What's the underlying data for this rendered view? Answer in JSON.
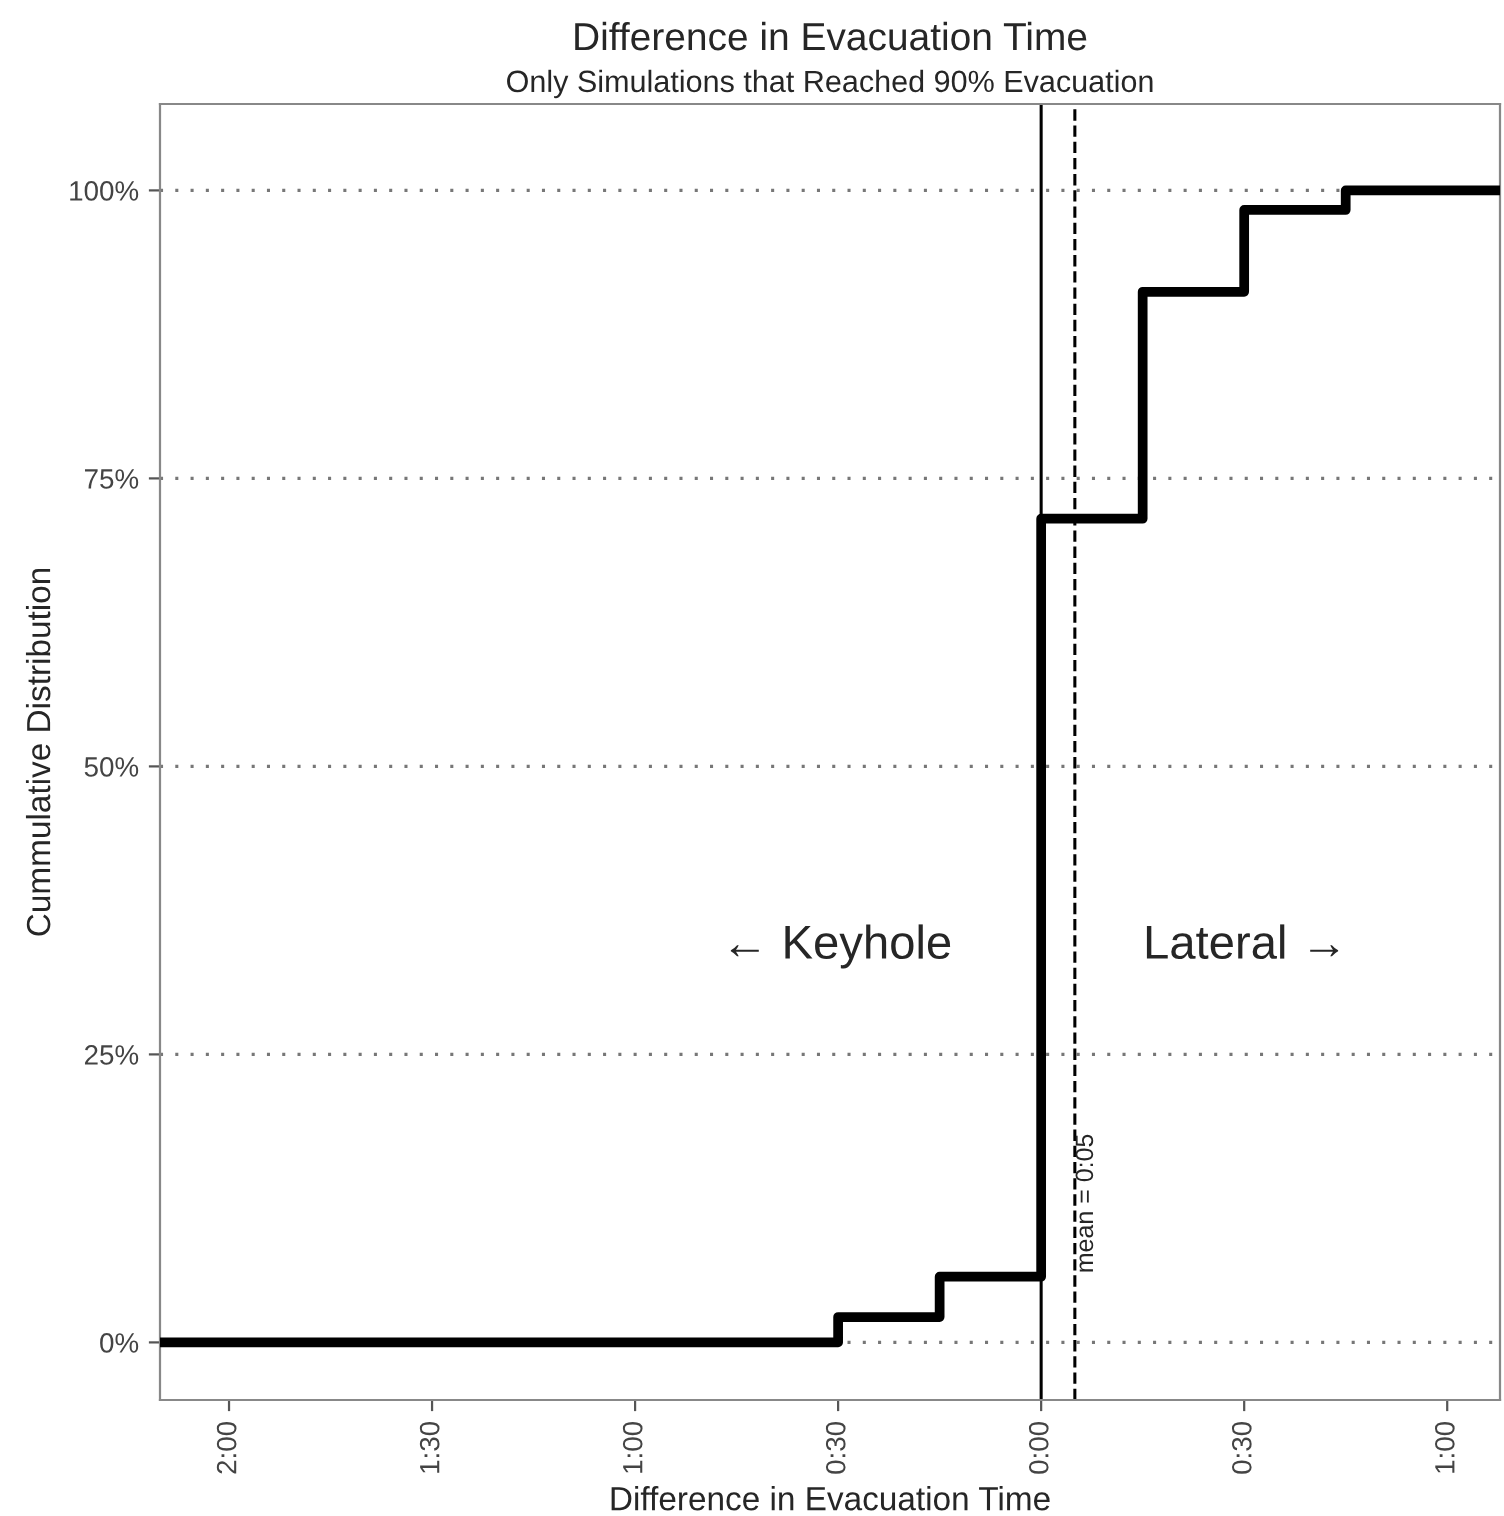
{
  "chart_data": {
    "type": "step",
    "title": "Difference in Evacuation Time",
    "subtitle": "Only Simulations that Reached 90% Evacuation",
    "xlabel": "Difference in Evacuation Time",
    "ylabel": "Cummulative Distribution",
    "series": [
      {
        "color": "#000000",
        "x": [
          -2.17,
          -0.5,
          -0.25,
          0,
          0.25,
          0.5,
          0.75,
          1.13
        ],
        "values": [
          0,
          2.2,
          5.7,
          71.5,
          91.2,
          98.3,
          100,
          100
        ]
      }
    ],
    "xlim": [
      -2.17,
      1.13
    ],
    "xticks": [
      {
        "value": -2,
        "label": "2:00"
      },
      {
        "value": -1.5,
        "label": "1:30"
      },
      {
        "value": -1,
        "label": "1:00"
      },
      {
        "value": -0.5,
        "label": "0:30"
      },
      {
        "value": 0,
        "label": "0:00"
      },
      {
        "value": 0.5,
        "label": "0:30"
      },
      {
        "value": 1,
        "label": "1:00"
      }
    ],
    "ylim": [
      -5,
      107.5
    ],
    "yticks": [
      {
        "value": 0,
        "label": "0%"
      },
      {
        "value": 25,
        "label": "25%"
      },
      {
        "value": 50,
        "label": "50%"
      },
      {
        "value": 75,
        "label": "75%"
      },
      {
        "value": 100,
        "label": "100%"
      }
    ],
    "ref_lines": [
      {
        "axis": "x",
        "value": 0,
        "color": "#000000",
        "line_style": "solid"
      },
      {
        "axis": "x",
        "value": 0.083,
        "label": "mean = 0:05",
        "color": "#000000",
        "line_style": "dashed"
      }
    ],
    "annotations": [
      "← Keyhole",
      "Lateral →"
    ],
    "grid": "y",
    "legend": false
  }
}
